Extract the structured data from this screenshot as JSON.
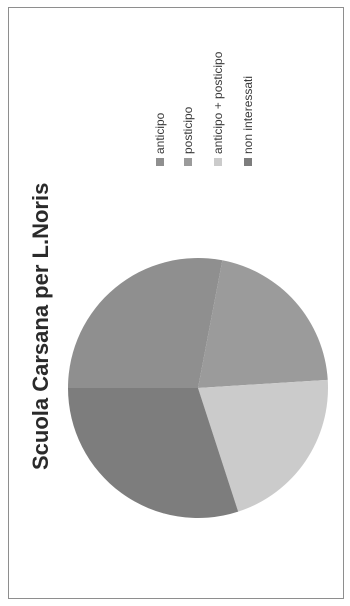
{
  "chart_data": {
    "type": "pie",
    "title": "Scuola Carsana per L.Noris",
    "legend_position": "right",
    "series": [
      {
        "name": "anticipo",
        "value": 28,
        "color": "#8f8f8f"
      },
      {
        "name": "posticipo",
        "value": 21,
        "color": "#9b9b9b"
      },
      {
        "name": "anticipo + posticipo",
        "value": 21,
        "color": "#cbcbcb"
      },
      {
        "name": "non interessati",
        "value": 30,
        "color": "#7d7d7d"
      }
    ]
  }
}
